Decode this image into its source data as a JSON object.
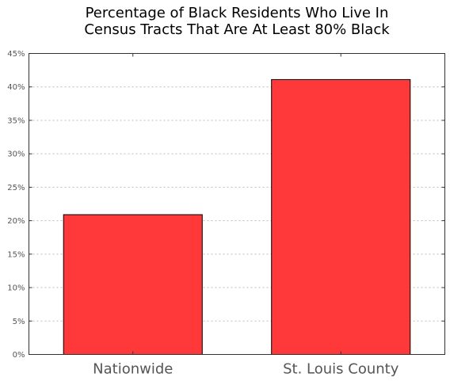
{
  "chart_data": {
    "type": "bar",
    "title_lines": [
      "Percentage of Black Residents Who Live In",
      "Census Tracts That Are At Least 80% Black"
    ],
    "categories": [
      "Nationwide",
      "St. Louis County"
    ],
    "values": [
      20.9,
      41.1
    ],
    "ylim": [
      0,
      45
    ],
    "yticks": [
      0,
      5,
      10,
      15,
      20,
      25,
      30,
      35,
      40,
      45
    ],
    "ytick_labels": [
      "0%",
      "5%",
      "10%",
      "15%",
      "20%",
      "25%",
      "30%",
      "35%",
      "40%",
      "45%"
    ],
    "xlabel": "",
    "ylabel": "",
    "grid": "horizontal dotted",
    "bar_color": "#ff3333",
    "edge_color": "#000000"
  }
}
